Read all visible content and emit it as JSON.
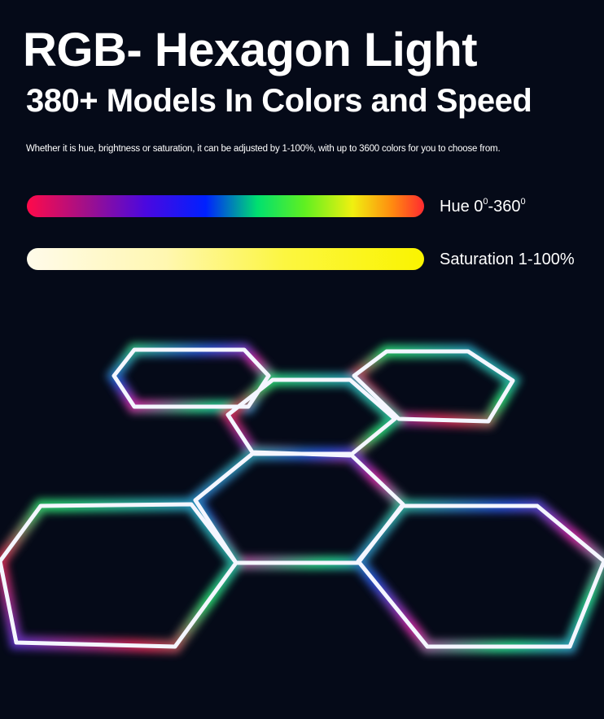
{
  "title": "RGB- Hexagon Light",
  "subtitle": "380+ Models In Colors and Speed",
  "description": "Whether it is hue, brightness or saturation, it can be adjusted by 1-100%, with up to 3600 colors for you to choose from.",
  "hue": {
    "label": "Hue 0",
    "sup1": "0",
    "mid": "-360",
    "sup2": "0"
  },
  "saturation": {
    "label": "Saturation 1-100%"
  },
  "colors": {
    "background": "#050a18"
  }
}
